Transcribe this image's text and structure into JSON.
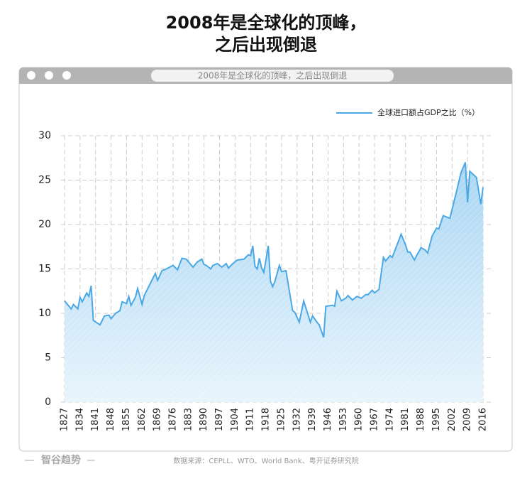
{
  "header": {
    "title_line1": "2008年是全球化的顶峰，",
    "title_line2": "之后出现倒退",
    "window_title": "2008年是全球化的顶峰，之后出现倒退"
  },
  "chart_data": {
    "type": "area",
    "legend_position": "top-right",
    "grid": true,
    "series": [
      {
        "name": "全球进口额占GDP之比（%）",
        "color": "#4aa8e6",
        "x": [
          1827,
          1830,
          1831,
          1833,
          1834,
          1835,
          1837,
          1838,
          1839,
          1840,
          1843,
          1845,
          1847,
          1848,
          1850,
          1852,
          1853,
          1855,
          1856,
          1857,
          1859,
          1860,
          1862,
          1863,
          1866,
          1868,
          1869,
          1871,
          1873,
          1876,
          1878,
          1880,
          1882,
          1885,
          1887,
          1889,
          1890,
          1891,
          1893,
          1894,
          1896,
          1898,
          1900,
          1901,
          1903,
          1905,
          1908,
          1910,
          1911,
          1912,
          1913,
          1914,
          1915,
          1916,
          1917,
          1919,
          1920,
          1921,
          1922,
          1924,
          1925,
          1927,
          1930,
          1931,
          1933,
          1935,
          1937,
          1938,
          1939,
          1941,
          1942,
          1944,
          1945,
          1948,
          1949,
          1950,
          1952,
          1954,
          1955,
          1957,
          1959,
          1961,
          1963,
          1964,
          1966,
          1967,
          1969,
          1971,
          1972,
          1974,
          1975,
          1979,
          1981,
          1982,
          1983,
          1985,
          1986,
          1988,
          1990,
          1991,
          1993,
          1995,
          1996,
          1998,
          2001,
          2004,
          2006,
          2008,
          2009,
          2010,
          2013,
          2015,
          2016
        ],
        "values": [
          11.4,
          10.5,
          11.0,
          10.5,
          11.8,
          11.3,
          12.3,
          11.9,
          13.1,
          9.2,
          8.7,
          9.7,
          9.8,
          9.4,
          10.0,
          10.3,
          11.3,
          11.1,
          11.9,
          10.9,
          11.8,
          12.8,
          11.0,
          12.0,
          13.5,
          14.5,
          13.7,
          14.8,
          15.0,
          15.4,
          14.9,
          16.2,
          16.1,
          15.2,
          15.8,
          16.1,
          15.5,
          15.4,
          15.0,
          15.4,
          15.6,
          15.2,
          15.6,
          15.1,
          15.6,
          16.0,
          16.1,
          16.6,
          16.5,
          17.6,
          15.3,
          15.0,
          16.2,
          15.1,
          14.6,
          17.6,
          13.6,
          13.0,
          13.6,
          15.4,
          14.7,
          14.8,
          10.3,
          10.1,
          9.0,
          11.4,
          9.8,
          9.0,
          9.7,
          9.0,
          8.7,
          7.3,
          10.8,
          10.9,
          10.8,
          12.5,
          11.4,
          11.7,
          12.0,
          11.5,
          11.9,
          11.7,
          12.1,
          12.1,
          12.6,
          12.3,
          12.7,
          16.3,
          15.9,
          16.5,
          16.3,
          18.9,
          17.7,
          16.9,
          16.9,
          16.0,
          16.5,
          17.4,
          17.1,
          16.8,
          18.7,
          19.6,
          19.5,
          21.0,
          20.7,
          23.7,
          25.8,
          27.0,
          22.5,
          26.0,
          25.3,
          22.3,
          24.2
        ]
      }
    ],
    "xlim": [
      1827,
      2016
    ],
    "xticks": [
      1827,
      1834,
      1841,
      1848,
      1855,
      1862,
      1869,
      1876,
      1883,
      1890,
      1897,
      1904,
      1911,
      1918,
      1925,
      1932,
      1939,
      1946,
      1953,
      1960,
      1967,
      1974,
      1981,
      1988,
      1995,
      2002,
      2009,
      2016
    ],
    "ylim": [
      0,
      30
    ],
    "yticks": [
      0,
      5,
      10,
      15,
      20,
      25,
      30
    ]
  },
  "footer": {
    "brand": "智谷趋势",
    "source": "数据来源：CEPLL、WTO、World Bank、粤开证券研究院"
  }
}
